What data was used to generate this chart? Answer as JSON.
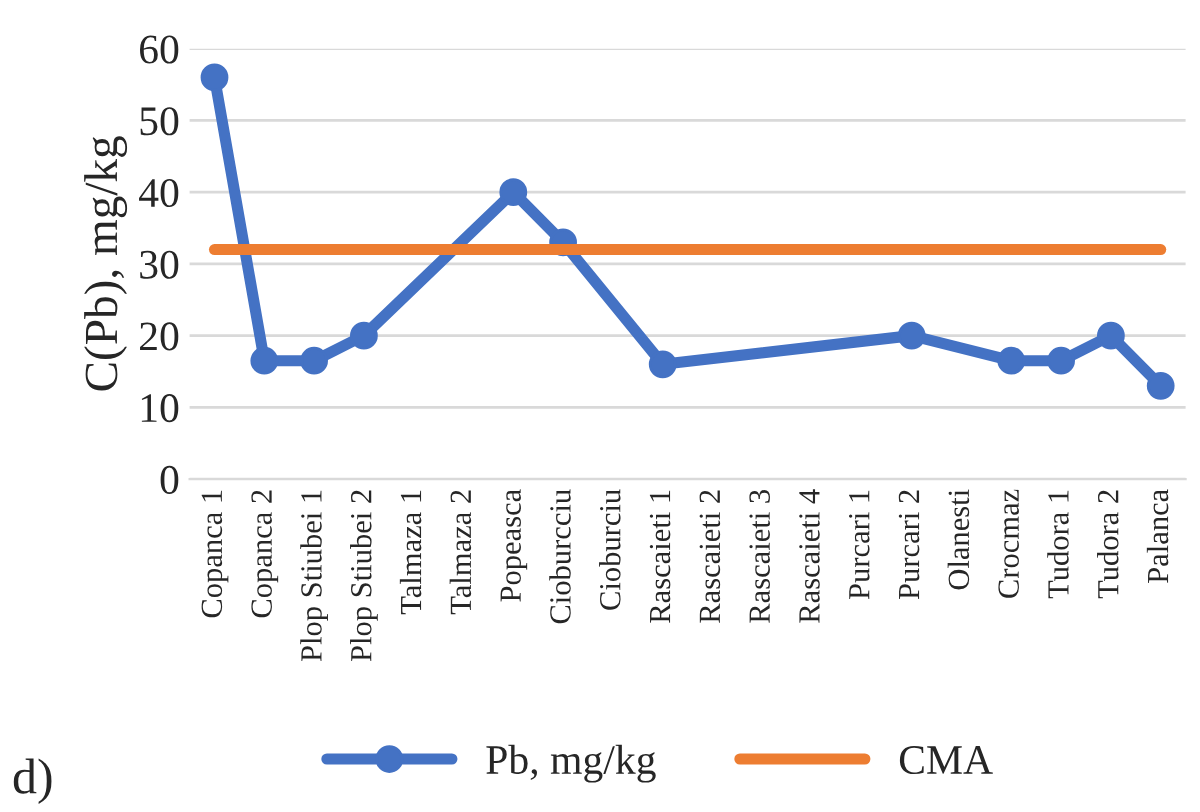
{
  "chart_data": {
    "type": "line",
    "ylabel": "C(Pb), mg/kg",
    "categories": [
      "Copanca 1",
      "Copanca 2",
      "Plop Stiubei 1",
      "Plop Stiubei 2",
      "Talmaza 1",
      "Talmaza 2",
      "Popeasca",
      "Cioburcciu",
      "Cioburciu",
      "Rascaieti 1",
      "Rascaieti 2",
      "Rascaieti 3",
      "Rascaieti 4",
      "Purcari 1",
      "Purcari 2",
      "Olanesti",
      "Crocmaz",
      "Tudora 1",
      "Tudora 2",
      "Palanca"
    ],
    "series": [
      {
        "name": "Pb, mg/kg",
        "color": "#4472c4",
        "marker": "circle",
        "values": [
          56,
          16.5,
          16.5,
          20,
          null,
          null,
          40,
          33,
          null,
          16,
          null,
          null,
          null,
          null,
          20,
          null,
          16.5,
          16.5,
          20,
          13
        ]
      },
      {
        "name": "CMA",
        "color": "#ed7d31",
        "marker": "none",
        "values": [
          32,
          32,
          32,
          32,
          32,
          32,
          32,
          32,
          32,
          32,
          32,
          32,
          32,
          32,
          32,
          32,
          32,
          32,
          32,
          32
        ]
      }
    ],
    "ylim": [
      0,
      60
    ],
    "yticks": [
      0,
      10,
      20,
      30,
      40,
      50,
      60
    ],
    "grid": "y",
    "legend": "bottom",
    "line_style": "solid",
    "annotations": [
      "d)"
    ]
  }
}
